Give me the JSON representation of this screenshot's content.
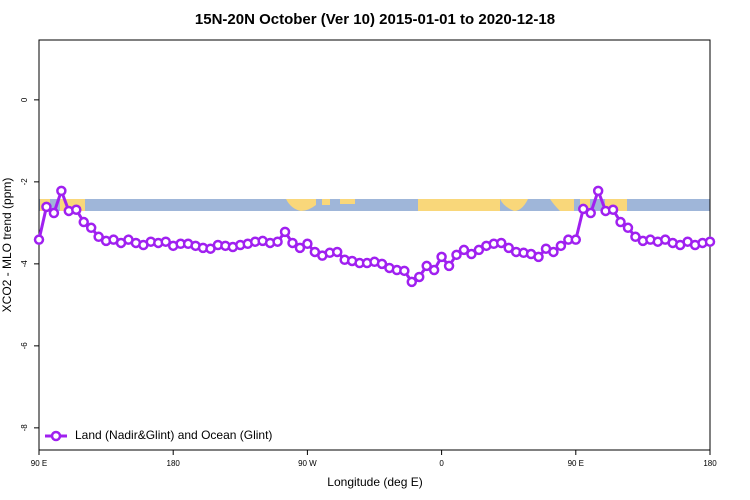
{
  "chart_data": {
    "type": "line",
    "title": "15N-20N October (Ver 10)   2015-01-01 to 2020-12-18",
    "xlabel": "Longitude (deg E)",
    "ylabel": "XCO2 - MLO trend (ppm)",
    "xlim": [
      90,
      540
    ],
    "ylim": [
      -8.54,
      1.46
    ],
    "xticks": [
      {
        "value": 90,
        "label": "90 E"
      },
      {
        "value": 180,
        "label": "180"
      },
      {
        "value": 270,
        "label": "90 W"
      },
      {
        "value": 360,
        "label": "0"
      },
      {
        "value": 450,
        "label": "90 E"
      },
      {
        "value": 540,
        "label": "180"
      }
    ],
    "yticks": [
      0,
      -2,
      -4,
      -6,
      -8
    ],
    "legend": "bottom-left",
    "x": [
      90,
      95,
      100,
      105,
      110,
      115,
      120,
      125,
      130,
      135,
      140,
      145,
      150,
      155,
      160,
      165,
      170,
      175,
      180,
      185,
      190,
      195,
      200,
      205,
      210,
      215,
      220,
      225,
      230,
      235,
      240,
      245,
      250,
      255,
      260,
      265,
      270,
      275,
      280,
      285,
      290,
      295,
      300,
      305,
      310,
      315,
      320,
      325,
      330,
      335,
      340,
      345,
      350,
      355,
      360,
      365,
      370,
      375,
      380,
      385,
      390,
      395,
      400,
      405,
      410,
      415,
      420,
      425,
      430,
      435,
      440,
      445,
      450,
      455,
      460,
      465,
      470,
      475,
      480,
      485,
      490,
      495,
      500,
      505,
      510,
      515,
      520,
      525,
      530,
      535,
      540
    ],
    "series": [
      {
        "name": "Land (Nadir&Glint) and Ocean (Glint)",
        "color": "#a020f0",
        "values": [
          -3.41,
          -2.61,
          -2.76,
          -2.22,
          -2.71,
          -2.68,
          -2.98,
          -3.12,
          -3.34,
          -3.44,
          -3.41,
          -3.49,
          -3.41,
          -3.49,
          -3.54,
          -3.46,
          -3.49,
          -3.46,
          -3.56,
          -3.51,
          -3.51,
          -3.56,
          -3.61,
          -3.63,
          -3.54,
          -3.56,
          -3.59,
          -3.54,
          -3.51,
          -3.46,
          -3.44,
          -3.49,
          -3.46,
          -3.22,
          -3.49,
          -3.61,
          -3.51,
          -3.71,
          -3.8,
          -3.73,
          -3.71,
          -3.9,
          -3.93,
          -3.98,
          -3.98,
          -3.95,
          -4.0,
          -4.1,
          -4.15,
          -4.17,
          -4.44,
          -4.32,
          -4.05,
          -4.15,
          -3.83,
          -4.05,
          -3.78,
          -3.66,
          -3.76,
          -3.66,
          -3.56,
          -3.51,
          -3.49,
          -3.61,
          -3.71,
          -3.73,
          -3.76,
          -3.83,
          -3.63,
          -3.71,
          -3.56,
          -3.41,
          -3.41,
          -2.66,
          -2.76,
          -2.22,
          -2.71,
          -2.68,
          -2.98,
          -3.12,
          -3.34,
          -3.44,
          -3.41,
          -3.46,
          -3.41,
          -3.49,
          -3.54,
          -3.46,
          -3.54,
          -3.49,
          -3.46
        ]
      }
    ]
  }
}
